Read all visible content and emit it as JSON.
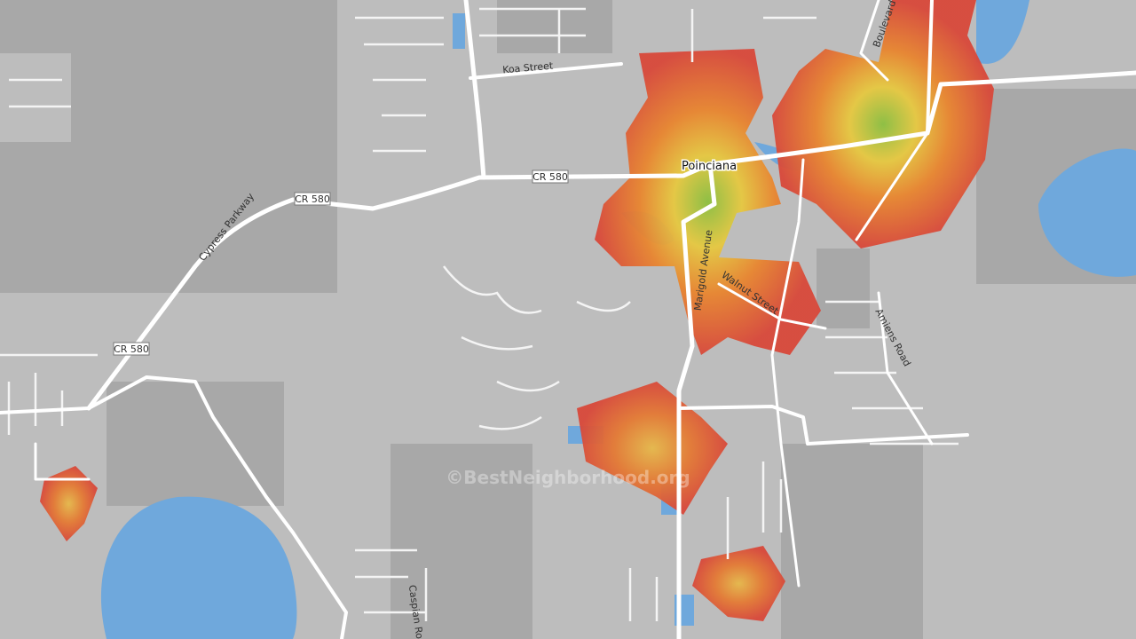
{
  "map": {
    "road_labels": [
      "Koa Street",
      "CR 580",
      "CR 580",
      "CR 580",
      "Cypress Parkway",
      "Marigold Avenue",
      "Walnut Street",
      "Amiens Road",
      "Boulevard",
      "Caspian Ro"
    ],
    "place_label": "Poinciana",
    "watermark": "©BestNeighborhood.org"
  }
}
